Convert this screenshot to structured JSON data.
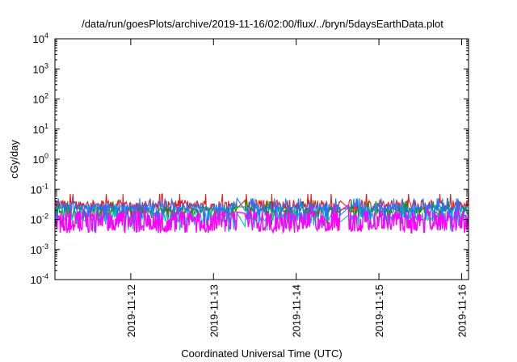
{
  "chart_data": {
    "type": "line",
    "title": "/data/run/goesPlots/archive/2019-11-16/02:00/flux/../bryn/5daysEarthData.plot",
    "xlabel": "Coordinated Universal Time (UTC)",
    "ylabel": "cGy/day",
    "yscale": "log",
    "ylim": [
      0.0001,
      10000
    ],
    "xlim": [
      "2019-11-11T02:00",
      "2019-11-16T02:00"
    ],
    "yticks": [
      {
        "base": "10",
        "exp": "-4",
        "value": 0.0001
      },
      {
        "base": "10",
        "exp": "-3",
        "value": 0.001
      },
      {
        "base": "10",
        "exp": "-2",
        "value": 0.01
      },
      {
        "base": "10",
        "exp": "-1",
        "value": 0.1
      },
      {
        "base": "10",
        "exp": "0",
        "value": 1
      },
      {
        "base": "10",
        "exp": "1",
        "value": 10
      },
      {
        "base": "10",
        "exp": "2",
        "value": 100
      },
      {
        "base": "10",
        "exp": "3",
        "value": 1000
      },
      {
        "base": "10",
        "exp": "4",
        "value": 10000
      }
    ],
    "xticks": [
      "2019-11-12",
      "2019-11-13",
      "2019-11-14",
      "2019-11-15",
      "2019-11-16"
    ],
    "gaps": [
      [
        "2019-11-13T07:00",
        "2019-11-13T09:00"
      ],
      [
        "2019-11-14T13:00",
        "2019-11-14T15:00"
      ]
    ],
    "legend": "none",
    "grid": false,
    "series": [
      {
        "color": "#e41a1c",
        "base": 0.03,
        "spread": 0.35,
        "spikes": 0.07
      },
      {
        "color": "#00a000",
        "base": 0.02,
        "spread": 0.25,
        "spikes": 0.04
      },
      {
        "color": "#1f77ff",
        "base": 0.025,
        "spread": 0.3,
        "spikes": 0.05
      },
      {
        "color": "#00c0c0",
        "base": 0.012,
        "spread": 0.3,
        "spikes": 0.03
      },
      {
        "color": "#ff00ff",
        "base": 0.005,
        "spread": 0.6,
        "spikes": 0.03
      }
    ]
  }
}
